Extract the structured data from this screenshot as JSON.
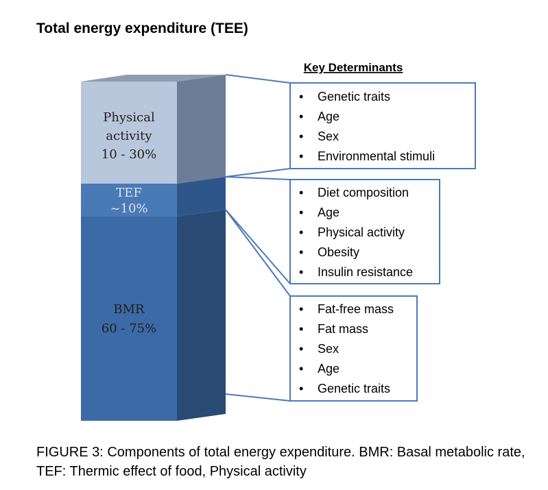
{
  "title": "Total energy expenditure (TEE)",
  "key_determinants_title": "Key Determinants",
  "segments": [
    {
      "name": "Physical activity",
      "line1": "Physical",
      "line2": "activity",
      "value_text": "10 - 30%"
    },
    {
      "name": "TEF",
      "line1": "TEF",
      "value_text": "~10%"
    },
    {
      "name": "BMR",
      "line1": "BMR",
      "value_text": "60 - 75%"
    }
  ],
  "boxes": [
    {
      "segment": "Physical activity",
      "items": [
        "Genetic traits",
        "Age",
        "Sex",
        "Environmental stimuli"
      ]
    },
    {
      "segment": "TEF",
      "items": [
        "Diet composition",
        "Age",
        "Physical activity",
        "Obesity",
        "Insulin resistance"
      ]
    },
    {
      "segment": "BMR",
      "items": [
        "Fat-free mass",
        "Fat mass",
        "Sex",
        "Age",
        "Genetic traits"
      ]
    }
  ],
  "bullet": "•",
  "caption": "FIGURE 3: Components of total energy expenditure. BMR: Basal metabolic rate, TEF: Thermic effect of food, Physical activity",
  "colors": {
    "pa_front": "#b9c7dc",
    "pa_side": "#6d7d95",
    "pa_top": "#8f9cb0",
    "tef_front": "#4a7ab5",
    "tef_side": "#2f568a",
    "bmr_front": "#3c6aa6",
    "bmr_side": "#294a74",
    "box_border": "#4a7ab5",
    "connector": "#4a7ab5",
    "label_dark": "#1f1f1f",
    "label_light": "#d9e3f0"
  }
}
